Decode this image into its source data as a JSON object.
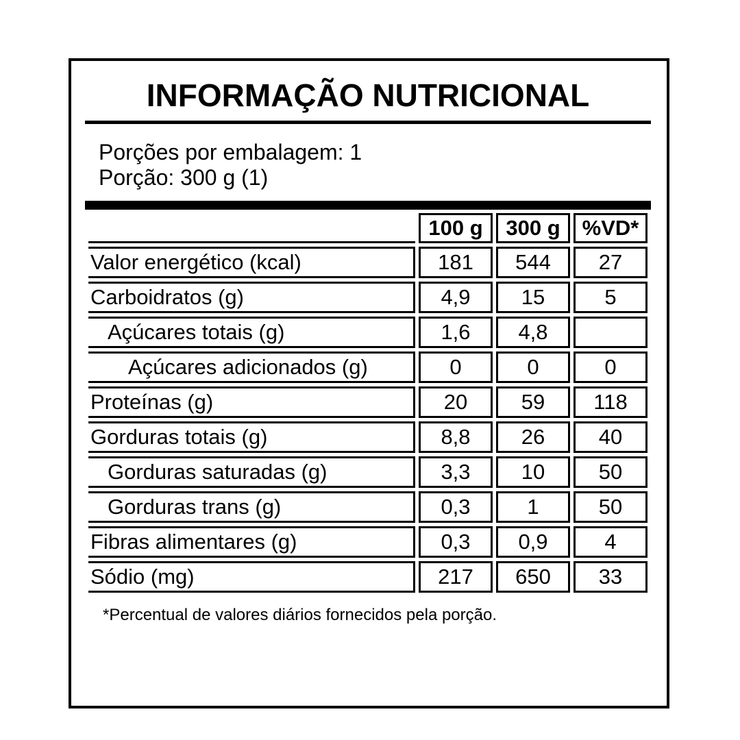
{
  "label": {
    "title": "INFORMAÇÃO NUTRICIONAL",
    "servings_per_package": "Porções por embalagem: 1",
    "serving_size": "Porção: 300 g (1)",
    "footnote": "*Percentual de valores diários fornecidos pela porção.",
    "colors": {
      "text": "#000000",
      "border": "#000000",
      "background": "#ffffff"
    },
    "table": {
      "columns": [
        "100 g",
        "300 g",
        "%VD*"
      ],
      "rows": [
        {
          "name": "Valor energético (kcal)",
          "indent": 0,
          "per100g": "181",
          "per300g": "544",
          "vd": "27"
        },
        {
          "name": "Carboidratos (g)",
          "indent": 0,
          "per100g": "4,9",
          "per300g": "15",
          "vd": "5"
        },
        {
          "name": "Açúcares totais (g)",
          "indent": 1,
          "per100g": "1,6",
          "per300g": "4,8",
          "vd": ""
        },
        {
          "name": "Açúcares adicionados (g)",
          "indent": 2,
          "per100g": "0",
          "per300g": "0",
          "vd": "0"
        },
        {
          "name": "Proteínas (g)",
          "indent": 0,
          "per100g": "20",
          "per300g": "59",
          "vd": "118"
        },
        {
          "name": "Gorduras totais (g)",
          "indent": 0,
          "per100g": "8,8",
          "per300g": "26",
          "vd": "40"
        },
        {
          "name": "Gorduras saturadas (g)",
          "indent": 1,
          "per100g": "3,3",
          "per300g": "10",
          "vd": "50"
        },
        {
          "name": "Gorduras trans (g)",
          "indent": 1,
          "per100g": "0,3",
          "per300g": "1",
          "vd": "50"
        },
        {
          "name": "Fibras alimentares (g)",
          "indent": 0,
          "per100g": "0,3",
          "per300g": "0,9",
          "vd": "4"
        },
        {
          "name": "Sódio (mg)",
          "indent": 0,
          "per100g": "217",
          "per300g": "650",
          "vd": "33"
        }
      ]
    }
  }
}
